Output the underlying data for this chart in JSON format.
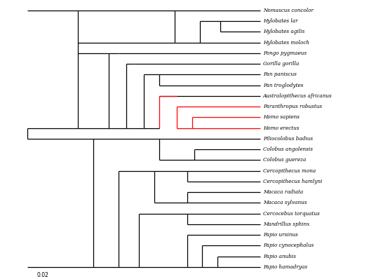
{
  "taxa": [
    "Nomascus concolor",
    "Hylobates lar",
    "Hylobates agilis",
    "Hylobates moloch",
    "Pongo pygmaeus",
    "Gorilla gorilla",
    "Pan paniscus",
    "Pan troglodytes",
    "Australopithecus africanus",
    "Paranthropus robustus",
    "Homo sapiens",
    "Homo erectus",
    "Piliocolobus badius",
    "Colobus angolensis",
    "Colobus guereza",
    "Cercopithecus mona",
    "Cercopithecus hamlyni",
    "Macaca radiata",
    "Macaca sylvanus",
    "Cercocebus torquatus",
    "Mandrillus sphinx",
    "Papio ursinus",
    "Papio cynocephalus",
    "Papio anubis",
    "Papio hamadryas"
  ],
  "red_branches": true,
  "scale_bar_label": "0.02",
  "background_color": "#ffffff",
  "figsize": [
    5.26,
    3.98
  ],
  "dpi": 100
}
